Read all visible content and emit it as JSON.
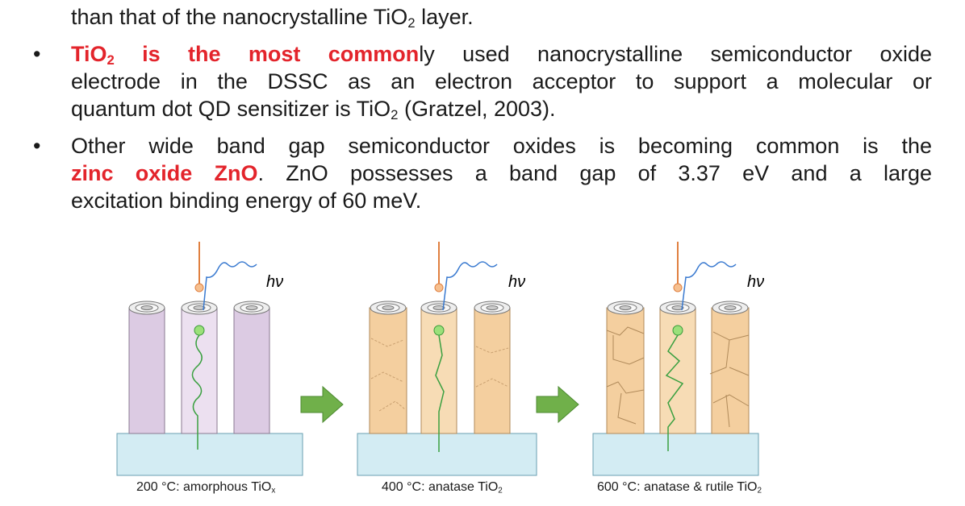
{
  "paragraphs": [
    {
      "bullet": false,
      "lines": [
        [
          {
            "text": "than that of the nanocrystalline TiO"
          },
          {
            "text": "2",
            "sub": true
          },
          {
            "text": " layer."
          }
        ]
      ]
    },
    {
      "bullet": true,
      "lines": [
        [
          {
            "text": "TiO",
            "color": "#e3242b"
          },
          {
            "text": "2",
            "sub": true,
            "color": "#e3242b"
          },
          {
            "text": " is the most common",
            "color": "#e3242b"
          },
          {
            "text": "ly used nanocrystalline semiconductor oxide"
          }
        ],
        [
          {
            "text": "electrode in the DSSC as an electron acceptor to support a molecular or"
          }
        ],
        [
          {
            "text": "quantum dot QD sensitizer is TiO"
          },
          {
            "text": "2",
            "sub": true
          },
          {
            "text": " (Gratzel, 2003)."
          }
        ]
      ]
    },
    {
      "bullet": true,
      "lines": [
        [
          {
            "text": "Other wide band gap semiconductor oxides is becoming common is the"
          }
        ],
        [
          {
            "text": "zinc oxide ZnO",
            "color": "#e3242b"
          },
          {
            "text": ". ZnO possesses a band gap of 3.37 eV and a large"
          }
        ],
        [
          {
            "text": "excitation binding energy of 60 meV."
          }
        ]
      ]
    }
  ],
  "figure": {
    "panels": [
      {
        "light_label": "hν",
        "caption": [
          {
            "text": "200 °C: amorphous TiO"
          },
          {
            "text": "x",
            "sub": true
          }
        ]
      },
      {
        "light_label": "hν",
        "caption": [
          {
            "text": "400 °C: anatase TiO"
          },
          {
            "text": "2",
            "sub": true
          }
        ]
      },
      {
        "light_label": "hν",
        "caption": [
          {
            "text": "600 °C: anatase &amp; rutile TiO"
          },
          {
            "text": "2",
            "sub": true
          }
        ]
      }
    ]
  }
}
